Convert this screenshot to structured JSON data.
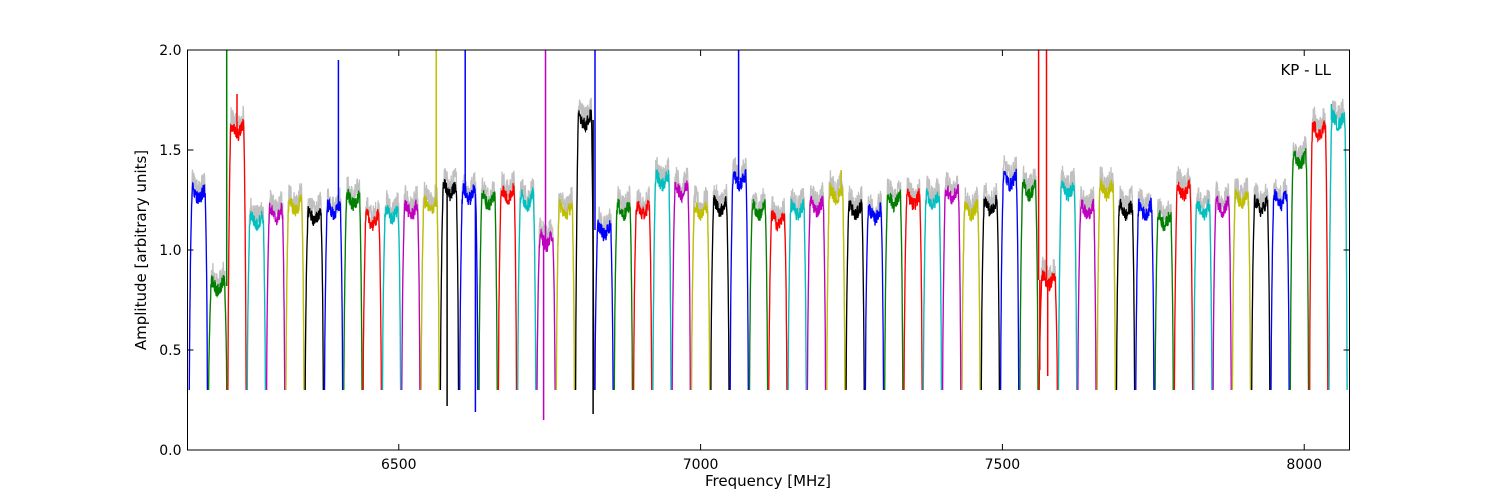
{
  "chart_data": {
    "type": "line",
    "title": "",
    "annotation": "KP - LL",
    "xlabel": "Frequency [MHz]",
    "ylabel": "Amplitude [arbitrary units]",
    "xlim": [
      6150,
      8075
    ],
    "ylim": [
      0.0,
      2.0
    ],
    "x_ticks": [
      6500,
      7000,
      7500,
      8000
    ],
    "x_tick_labels": [
      "6500",
      "7000",
      "7500",
      "8000"
    ],
    "y_ticks": [
      0.0,
      0.5,
      1.0,
      1.5,
      2.0
    ],
    "y_tick_labels": [
      "0.0",
      "0.5",
      "1.0",
      "1.5",
      "2.0"
    ],
    "grid": false,
    "legend": "none",
    "channel_width_mhz": 32,
    "color_cycle": [
      "#0000ff",
      "#008000",
      "#ff0000",
      "#00bfbf",
      "#bf00bf",
      "#bfbf00",
      "#000000"
    ],
    "raw_color": "#c0c0c0",
    "channel_start_frequencies": [
      6152,
      6184,
      6216,
      6248,
      6280,
      6312,
      6344,
      6376,
      6408,
      6440,
      6472,
      6504,
      6536,
      6568,
      6600,
      6632,
      6664,
      6696,
      6728,
      6760,
      6792,
      6824,
      6856,
      6888,
      6920,
      6952,
      6984,
      7016,
      7048,
      7080,
      7112,
      7144,
      7176,
      7208,
      7240,
      7272,
      7304,
      7336,
      7368,
      7400,
      7432,
      7464,
      7496,
      7528,
      7560,
      7592,
      7624,
      7656,
      7688,
      7720,
      7752,
      7784,
      7816,
      7848,
      7880,
      7912,
      7944,
      7976,
      8008,
      8040
    ],
    "channel_levels": [
      1.28,
      0.82,
      1.6,
      1.15,
      1.18,
      1.22,
      1.17,
      1.2,
      1.25,
      1.15,
      1.18,
      1.2,
      1.22,
      1.3,
      1.28,
      1.25,
      1.28,
      1.25,
      1.05,
      1.2,
      1.65,
      1.1,
      1.2,
      1.2,
      1.35,
      1.3,
      1.2,
      1.22,
      1.35,
      1.2,
      1.15,
      1.2,
      1.22,
      1.28,
      1.2,
      1.18,
      1.25,
      1.25,
      1.25,
      1.28,
      1.2,
      1.22,
      1.35,
      1.3,
      0.85,
      1.3,
      1.2,
      1.3,
      1.2,
      1.2,
      1.15,
      1.3,
      1.2,
      1.22,
      1.25,
      1.22,
      1.25,
      1.45,
      1.6,
      1.65
    ],
    "channel_minimum": 0.3,
    "spikes": [
      {
        "x": 6215,
        "y": 2.0
      },
      {
        "x": 6232,
        "y": 1.78
      },
      {
        "x": 6400,
        "y": 1.95
      },
      {
        "x": 6562,
        "y": 2.0
      },
      {
        "x": 6580,
        "y": 0.22
      },
      {
        "x": 6610,
        "y": 2.0
      },
      {
        "x": 6627,
        "y": 0.19
      },
      {
        "x": 6743,
        "y": 2.0
      },
      {
        "x": 6740,
        "y": 0.15
      },
      {
        "x": 6825,
        "y": 2.0
      },
      {
        "x": 6822,
        "y": 0.18
      },
      {
        "x": 7063,
        "y": 2.0
      },
      {
        "x": 7233,
        "y": 1.4
      },
      {
        "x": 7560,
        "y": 2.0
      },
      {
        "x": 7573,
        "y": 2.0
      },
      {
        "x": 7562,
        "y": 0.4
      },
      {
        "x": 7575,
        "y": 0.37
      },
      {
        "x": 8045,
        "y": 1.73
      }
    ]
  }
}
